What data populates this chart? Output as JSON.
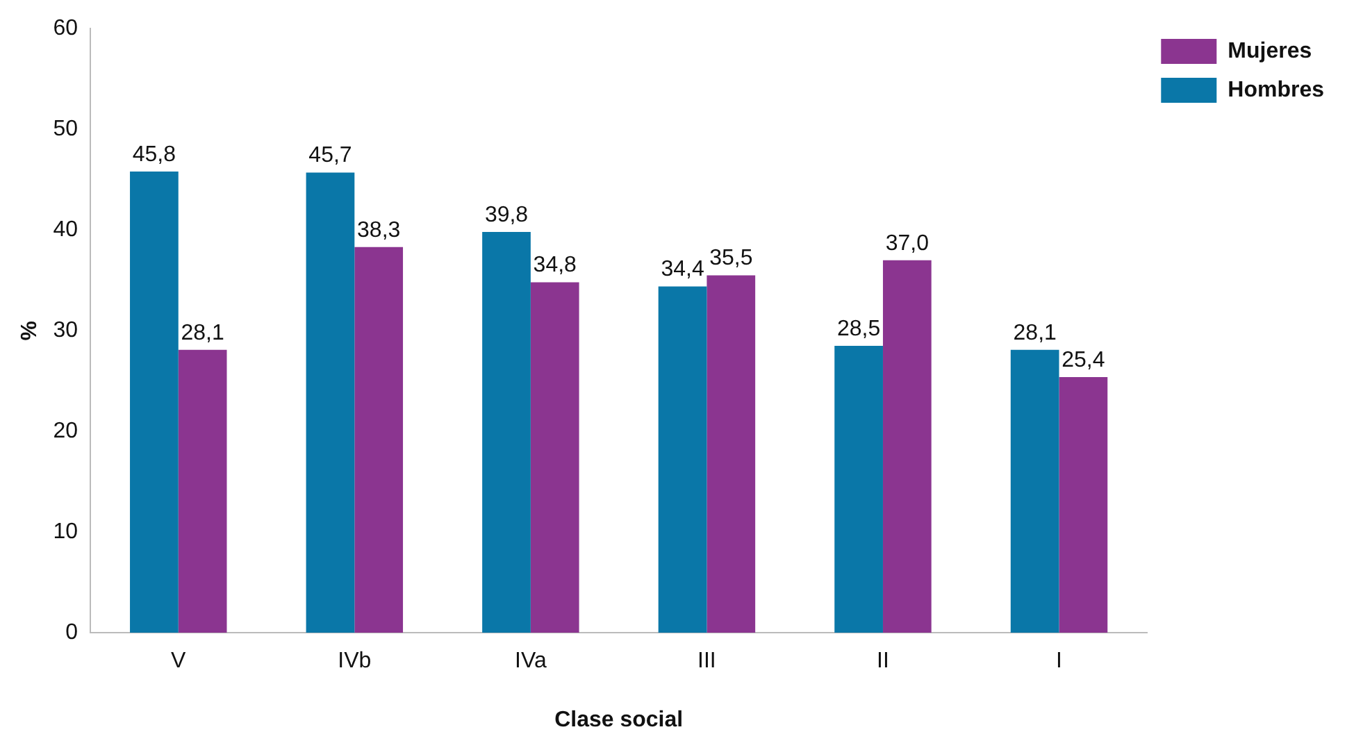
{
  "chart_data": {
    "type": "bar",
    "xlabel": "Clase social",
    "ylabel": "%",
    "categories": [
      "V",
      "IVb",
      "IVa",
      "III",
      "II",
      "I"
    ],
    "series": [
      {
        "name": "Hombres",
        "color": "#0a77a8",
        "values": [
          45.8,
          45.7,
          39.8,
          34.4,
          28.5,
          28.1
        ],
        "value_labels": [
          "45,8",
          "45,7",
          "39,8",
          "34,4",
          "28,5",
          "28,1"
        ]
      },
      {
        "name": "Mujeres",
        "color": "#8b3590",
        "values": [
          28.1,
          38.3,
          34.8,
          35.5,
          37.0,
          25.4
        ],
        "value_labels": [
          "28,1",
          "38,3",
          "34,8",
          "35,5",
          "37,0",
          "25,4"
        ]
      }
    ],
    "ylim": [
      0,
      60
    ],
    "yticks": [
      0,
      10,
      20,
      30,
      40,
      50,
      60
    ],
    "grid": false,
    "legend": "top right"
  }
}
